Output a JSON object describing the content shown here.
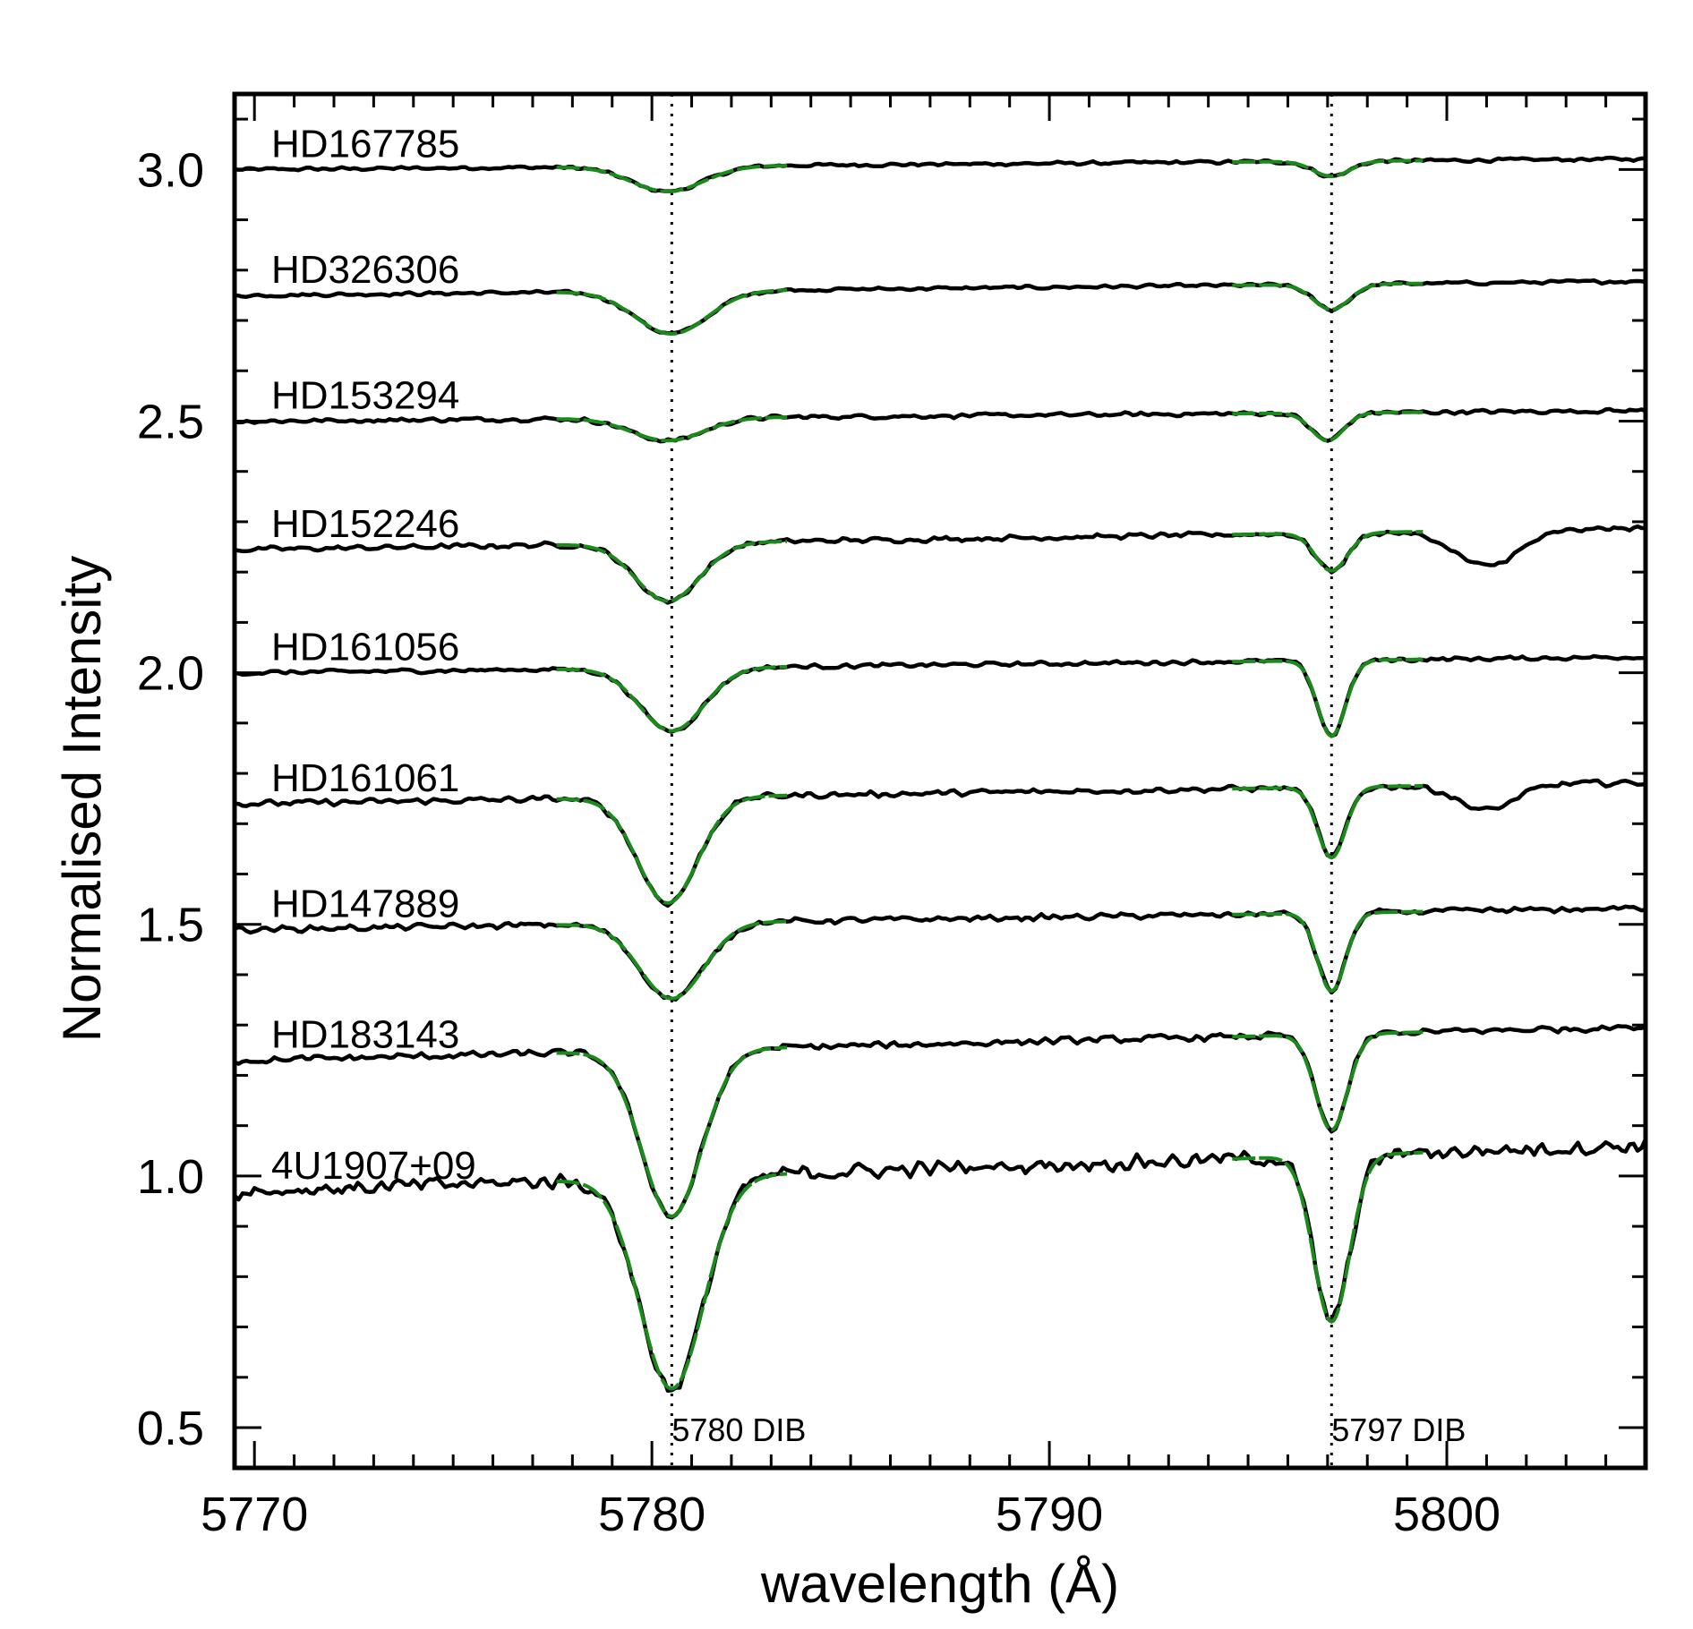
{
  "chart_data": {
    "type": "line",
    "title": "",
    "xlabel": "wavelength (Å)",
    "ylabel": "Normalised Intensity",
    "xlim": [
      5769.5,
      5805
    ],
    "ylim": [
      0.42,
      3.15
    ],
    "x_ticks": [
      5770,
      5780,
      5790,
      5800
    ],
    "x_tick_labels": [
      "5770",
      "5780",
      "5790",
      "5800"
    ],
    "y_ticks": [
      0.5,
      1.0,
      1.5,
      2.0,
      2.5,
      3.0
    ],
    "y_tick_labels": [
      "0.5",
      "1.0",
      "1.5",
      "2.0",
      "2.5",
      "3.0"
    ],
    "grid": false,
    "colors": {
      "observed": "#000000",
      "fit": "#1a8a1a",
      "reference": "#000000"
    },
    "reference_lines": [
      {
        "x": 5780.5,
        "label": "5780 DIB"
      },
      {
        "x": 5797.1,
        "label": "5797 DIB"
      }
    ],
    "fit_ranges": {
      "dib_5780": [
        5777.6,
        5783.4
      ],
      "dib_5797": [
        5794.6,
        5799.4
      ]
    },
    "series": [
      {
        "name": "HD167785",
        "offset": 3.0,
        "slope": 0.0006,
        "noise": 0.004,
        "dibs": [
          {
            "center": 5780.4,
            "depth": 0.05,
            "sigma": 0.9
          },
          {
            "center": 5797.1,
            "depth": 0.03,
            "sigma": 0.45
          }
        ],
        "extra": []
      },
      {
        "name": "HD326306",
        "offset": 2.75,
        "slope": 0.0008,
        "noise": 0.004,
        "dibs": [
          {
            "center": 5780.5,
            "depth": 0.085,
            "sigma": 0.9
          },
          {
            "center": 5797.1,
            "depth": 0.05,
            "sigma": 0.45
          }
        ],
        "extra": []
      },
      {
        "name": "HD153294",
        "offset": 2.5,
        "slope": 0.0006,
        "noise": 0.005,
        "dibs": [
          {
            "center": 5780.4,
            "depth": 0.045,
            "sigma": 0.9
          },
          {
            "center": 5797.0,
            "depth": 0.055,
            "sigma": 0.4
          }
        ],
        "extra": []
      },
      {
        "name": "HD152246",
        "offset": 2.245,
        "slope": 0.0012,
        "noise": 0.006,
        "dibs": [
          {
            "center": 5780.4,
            "depth": 0.115,
            "sigma": 0.8
          },
          {
            "center": 5797.1,
            "depth": 0.075,
            "sigma": 0.4
          }
        ],
        "extra": [
          {
            "center": 5801.0,
            "depth": 0.07,
            "sigma": 0.8
          }
        ]
      },
      {
        "name": "HD161056",
        "offset": 2.0,
        "slope": 0.0009,
        "noise": 0.005,
        "dibs": [
          {
            "center": 5780.5,
            "depth": 0.125,
            "sigma": 0.8
          },
          {
            "center": 5797.1,
            "depth": 0.15,
            "sigma": 0.35
          }
        ],
        "extra": []
      },
      {
        "name": "HD161061",
        "offset": 1.74,
        "slope": 0.0012,
        "noise": 0.007,
        "dibs": [
          {
            "center": 5780.4,
            "depth": 0.21,
            "sigma": 0.75
          },
          {
            "center": 5797.1,
            "depth": 0.14,
            "sigma": 0.35
          }
        ],
        "extra": [
          {
            "center": 5801.0,
            "depth": 0.05,
            "sigma": 0.7
          }
        ]
      },
      {
        "name": "HD147889",
        "offset": 1.49,
        "slope": 0.0012,
        "noise": 0.007,
        "dibs": [
          {
            "center": 5780.5,
            "depth": 0.15,
            "sigma": 0.8
          },
          {
            "center": 5797.1,
            "depth": 0.155,
            "sigma": 0.35
          }
        ],
        "extra": []
      },
      {
        "name": "HD183143",
        "offset": 1.23,
        "slope": 0.0019,
        "noise": 0.008,
        "dibs": [
          {
            "center": 5780.5,
            "depth": 0.33,
            "sigma": 0.75
          },
          {
            "center": 5797.1,
            "depth": 0.19,
            "sigma": 0.4
          }
        ],
        "extra": []
      },
      {
        "name": "4U1907+09",
        "offset": 0.97,
        "slope": 0.0026,
        "noise": 0.018,
        "dibs": [
          {
            "center": 5780.5,
            "depth": 0.42,
            "sigma": 0.8
          },
          {
            "center": 5797.1,
            "depth": 0.33,
            "sigma": 0.45
          }
        ],
        "extra": []
      }
    ]
  }
}
